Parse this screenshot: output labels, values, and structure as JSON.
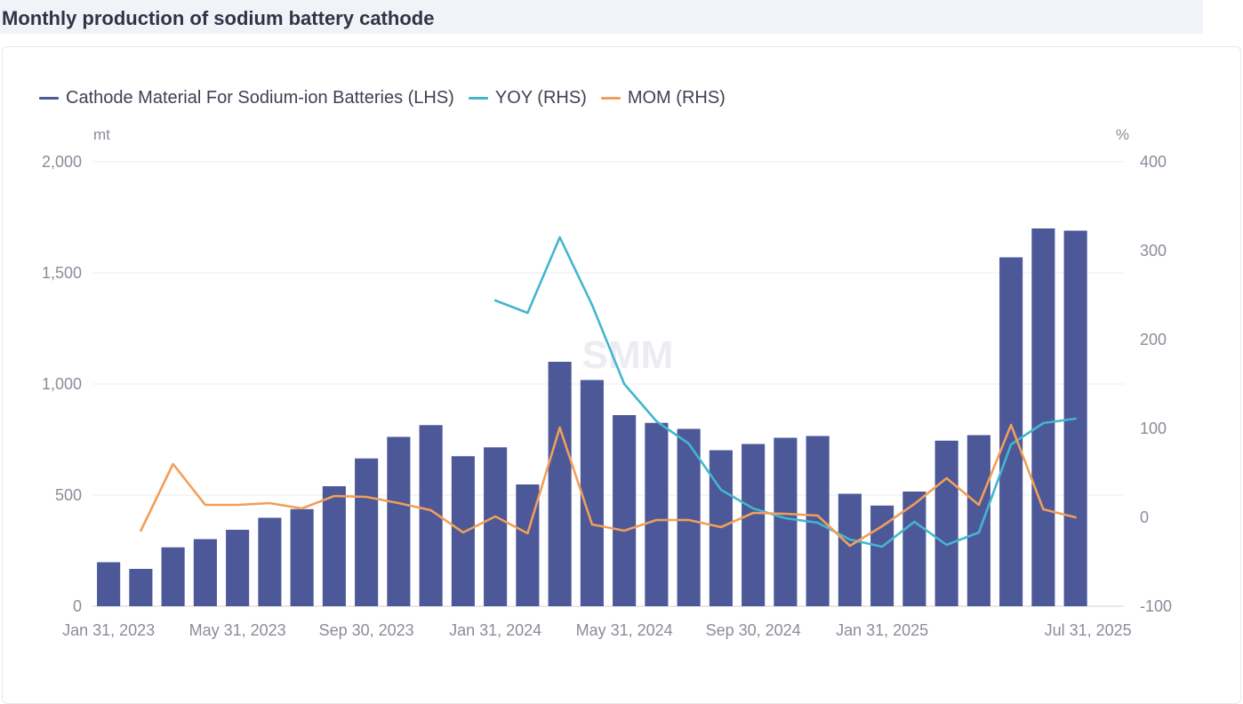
{
  "title": "Monthly production of sodium battery cathode",
  "watermark": "SMM",
  "chart_data": {
    "type": "bar",
    "categories": [
      "2023-01",
      "2023-02",
      "2023-03",
      "2023-04",
      "2023-05",
      "2023-06",
      "2023-07",
      "2023-08",
      "2023-09",
      "2023-10",
      "2023-11",
      "2023-12",
      "2024-01",
      "2024-02",
      "2024-03",
      "2024-04",
      "2024-05",
      "2024-06",
      "2024-07",
      "2024-08",
      "2024-09",
      "2024-10",
      "2024-11",
      "2024-12",
      "2025-01",
      "2025-02",
      "2025-03",
      "2025-04",
      "2025-05",
      "2025-06",
      "2025-07",
      "2025-08"
    ],
    "x_tick_labels": [
      "Jan 31, 2023",
      "May 31, 2023",
      "Sep 30, 2023",
      "Jan 31, 2024",
      "May 31, 2024",
      "Sep 30, 2024",
      "Jan 31, 2025",
      "Jul 31, 2025"
    ],
    "x_tick_indices": [
      0,
      4,
      8,
      12,
      16,
      20,
      24,
      30
    ],
    "x_tick_anchor": [
      "middle",
      "middle",
      "middle",
      "middle",
      "middle",
      "middle",
      "middle",
      "middle"
    ],
    "y_left": {
      "unit": "mt",
      "ylim": [
        0,
        2000
      ],
      "ticks": [
        0,
        500,
        1000,
        1500,
        2000
      ],
      "tick_labels": [
        "0",
        "500",
        "1,000",
        "1,500",
        "2,000"
      ]
    },
    "y_right": {
      "unit": "%",
      "ylim": [
        -100,
        400
      ],
      "ticks": [
        -100,
        0,
        100,
        200,
        300,
        400
      ],
      "tick_labels": [
        "-100",
        "0",
        "100",
        "200",
        "300",
        "400"
      ]
    },
    "grid": true,
    "legend_position": "top-left",
    "series": [
      {
        "name": "Cathode Material For Sodium-ion Batteries (LHS)",
        "kind": "bar",
        "axis": "left",
        "color": "#4c5898",
        "values": [
          198,
          168,
          265,
          302,
          344,
          398,
          437,
          540,
          665,
          762,
          815,
          675,
          715,
          548,
          1100,
          1018,
          860,
          825,
          798,
          702,
          730,
          758,
          766,
          506,
          453,
          516,
          745,
          770,
          1570,
          1700,
          1690,
          null
        ]
      },
      {
        "name": "YOY (RHS)",
        "kind": "line",
        "axis": "right",
        "color": "#44b6cc",
        "values": [
          null,
          null,
          null,
          null,
          null,
          null,
          null,
          null,
          null,
          null,
          null,
          null,
          244,
          230,
          315,
          239,
          150,
          108,
          83,
          31,
          10,
          -1,
          -6,
          -25,
          -33,
          -5,
          -31,
          -17,
          82,
          106,
          111,
          null
        ]
      },
      {
        "name": "MOM (RHS)",
        "kind": "line",
        "axis": "right",
        "color": "#f09f59",
        "values": [
          null,
          -15,
          60,
          14,
          14,
          16,
          10,
          24,
          23,
          16,
          8,
          -17,
          1,
          -18,
          101,
          -8,
          -15,
          -3,
          -3,
          -11,
          5,
          4,
          2,
          -32,
          -10,
          15,
          44,
          14,
          104,
          9,
          0,
          null
        ]
      }
    ]
  }
}
